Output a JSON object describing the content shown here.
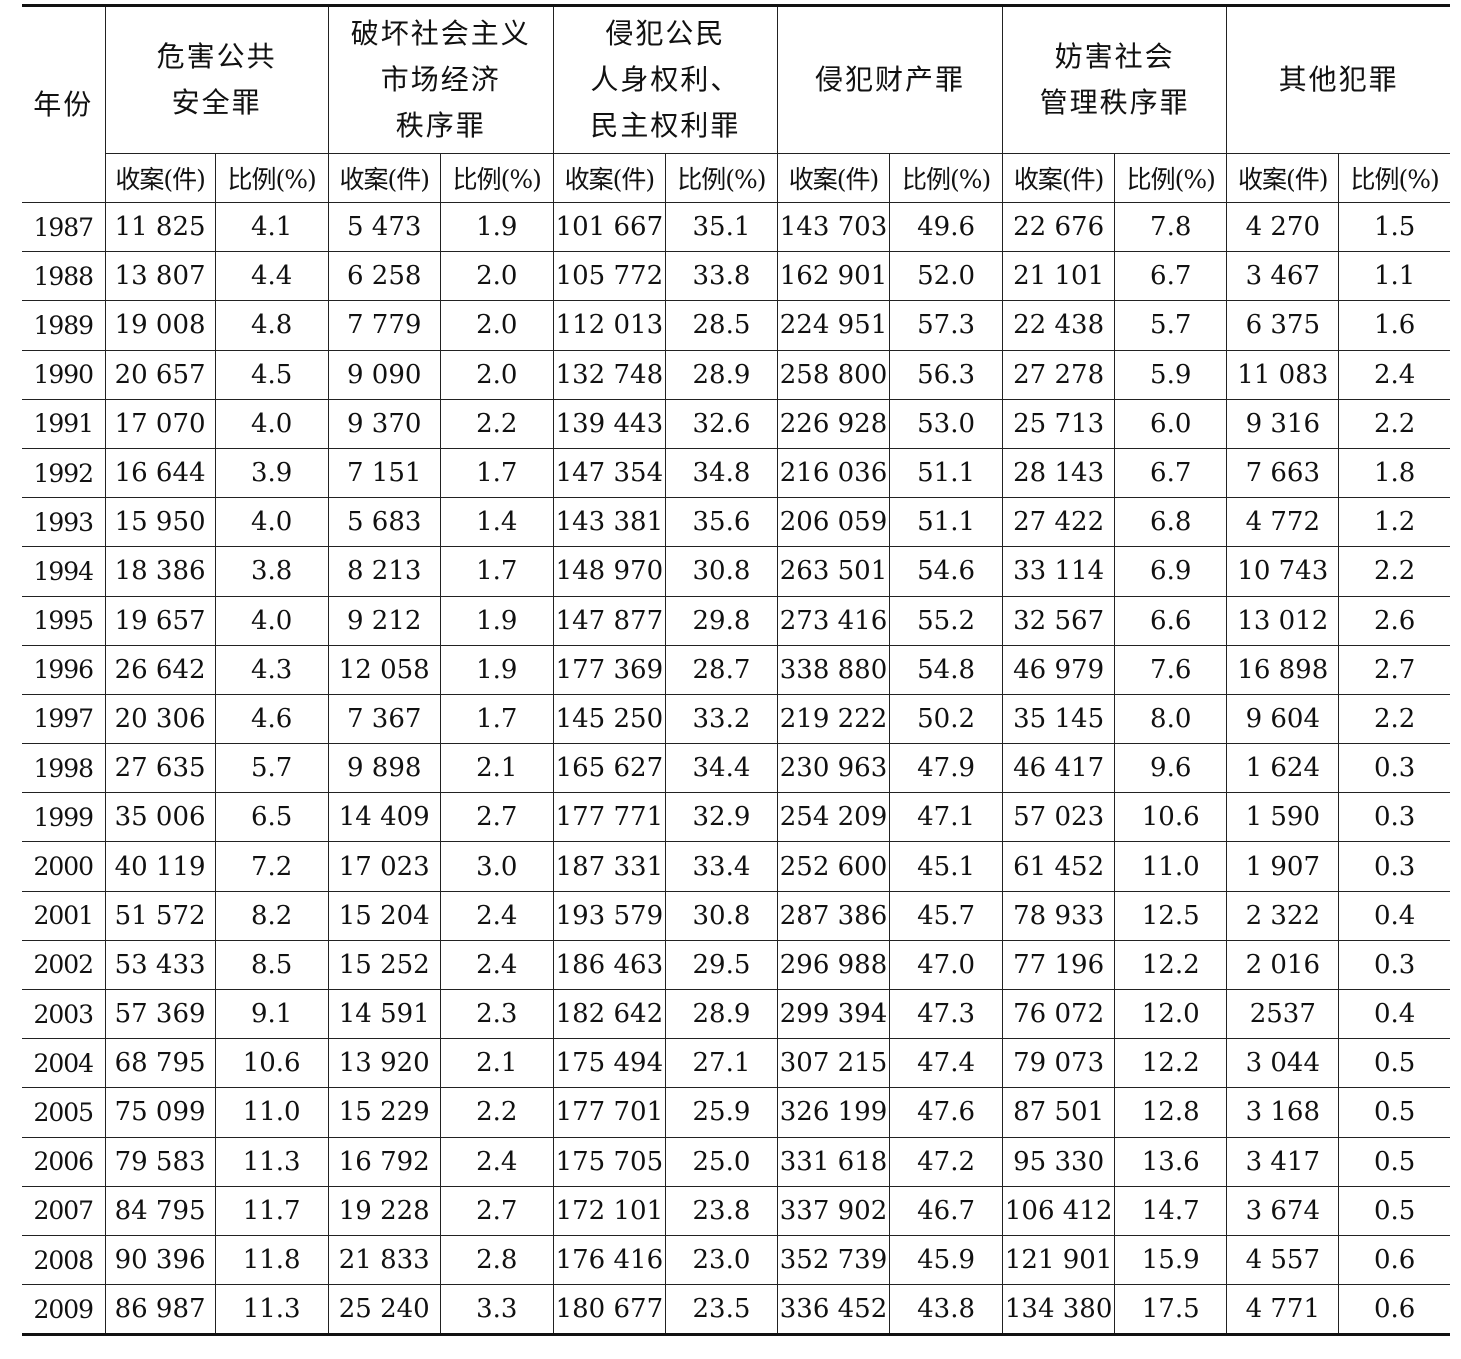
{
  "header": {
    "year": "年份",
    "groups": [
      "危害公共\n安全罪",
      "破坏社会主义\n市场经济\n秩序罪",
      "侵犯公民\n人身权利、\n民主权利罪",
      "侵犯财产罪",
      "妨害社会\n管理秩序罪",
      "其他犯罪"
    ],
    "cases_label": "收案(件)",
    "ratio_label": "比例(%)"
  },
  "rows": [
    [
      "1987",
      "11 825",
      "4.1",
      "5 473",
      "1.9",
      "101 667",
      "35.1",
      "143 703",
      "49.6",
      "22 676",
      "7.8",
      "4 270",
      "1.5"
    ],
    [
      "1988",
      "13 807",
      "4.4",
      "6 258",
      "2.0",
      "105 772",
      "33.8",
      "162 901",
      "52.0",
      "21 101",
      "6.7",
      "3 467",
      "1.1"
    ],
    [
      "1989",
      "19 008",
      "4.8",
      "7 779",
      "2.0",
      "112 013",
      "28.5",
      "224 951",
      "57.3",
      "22 438",
      "5.7",
      "6 375",
      "1.6"
    ],
    [
      "1990",
      "20 657",
      "4.5",
      "9 090",
      "2.0",
      "132 748",
      "28.9",
      "258 800",
      "56.3",
      "27 278",
      "5.9",
      "11 083",
      "2.4"
    ],
    [
      "1991",
      "17 070",
      "4.0",
      "9 370",
      "2.2",
      "139 443",
      "32.6",
      "226 928",
      "53.0",
      "25 713",
      "6.0",
      "9 316",
      "2.2"
    ],
    [
      "1992",
      "16 644",
      "3.9",
      "7 151",
      "1.7",
      "147 354",
      "34.8",
      "216 036",
      "51.1",
      "28 143",
      "6.7",
      "7 663",
      "1.8"
    ],
    [
      "1993",
      "15 950",
      "4.0",
      "5 683",
      "1.4",
      "143 381",
      "35.6",
      "206 059",
      "51.1",
      "27 422",
      "6.8",
      "4 772",
      "1.2"
    ],
    [
      "1994",
      "18 386",
      "3.8",
      "8 213",
      "1.7",
      "148 970",
      "30.8",
      "263 501",
      "54.6",
      "33 114",
      "6.9",
      "10 743",
      "2.2"
    ],
    [
      "1995",
      "19 657",
      "4.0",
      "9 212",
      "1.9",
      "147 877",
      "29.8",
      "273 416",
      "55.2",
      "32 567",
      "6.6",
      "13 012",
      "2.6"
    ],
    [
      "1996",
      "26 642",
      "4.3",
      "12 058",
      "1.9",
      "177 369",
      "28.7",
      "338 880",
      "54.8",
      "46 979",
      "7.6",
      "16 898",
      "2.7"
    ],
    [
      "1997",
      "20 306",
      "4.6",
      "7 367",
      "1.7",
      "145 250",
      "33.2",
      "219 222",
      "50.2",
      "35 145",
      "8.0",
      "9 604",
      "2.2"
    ],
    [
      "1998",
      "27 635",
      "5.7",
      "9 898",
      "2.1",
      "165 627",
      "34.4",
      "230 963",
      "47.9",
      "46 417",
      "9.6",
      "1 624",
      "0.3"
    ],
    [
      "1999",
      "35 006",
      "6.5",
      "14 409",
      "2.7",
      "177 771",
      "32.9",
      "254 209",
      "47.1",
      "57 023",
      "10.6",
      "1 590",
      "0.3"
    ],
    [
      "2000",
      "40 119",
      "7.2",
      "17 023",
      "3.0",
      "187 331",
      "33.4",
      "252 600",
      "45.1",
      "61 452",
      "11.0",
      "1 907",
      "0.3"
    ],
    [
      "2001",
      "51 572",
      "8.2",
      "15 204",
      "2.4",
      "193 579",
      "30.8",
      "287 386",
      "45.7",
      "78 933",
      "12.5",
      "2 322",
      "0.4"
    ],
    [
      "2002",
      "53 433",
      "8.5",
      "15 252",
      "2.4",
      "186 463",
      "29.5",
      "296 988",
      "47.0",
      "77 196",
      "12.2",
      "2 016",
      "0.3"
    ],
    [
      "2003",
      "57 369",
      "9.1",
      "14 591",
      "2.3",
      "182 642",
      "28.9",
      "299 394",
      "47.3",
      "76 072",
      "12.0",
      "2537",
      "0.4"
    ],
    [
      "2004",
      "68 795",
      "10.6",
      "13 920",
      "2.1",
      "175 494",
      "27.1",
      "307 215",
      "47.4",
      "79 073",
      "12.2",
      "3 044",
      "0.5"
    ],
    [
      "2005",
      "75 099",
      "11.0",
      "15 229",
      "2.2",
      "177 701",
      "25.9",
      "326 199",
      "47.6",
      "87 501",
      "12.8",
      "3 168",
      "0.5"
    ],
    [
      "2006",
      "79 583",
      "11.3",
      "16 792",
      "2.4",
      "175 705",
      "25.0",
      "331 618",
      "47.2",
      "95 330",
      "13.6",
      "3 417",
      "0.5"
    ],
    [
      "2007",
      "84 795",
      "11.7",
      "19 228",
      "2.7",
      "172 101",
      "23.8",
      "337 902",
      "46.7",
      "106 412",
      "14.7",
      "3 674",
      "0.5"
    ],
    [
      "2008",
      "90 396",
      "11.8",
      "21 833",
      "2.8",
      "176 416",
      "23.0",
      "352 739",
      "45.9",
      "121 901",
      "15.9",
      "4 557",
      "0.6"
    ],
    [
      "2009",
      "86 987",
      "11.3",
      "25 240",
      "3.3",
      "180 677",
      "23.5",
      "336 452",
      "43.8",
      "134 380",
      "17.5",
      "4 771",
      "0.6"
    ]
  ]
}
